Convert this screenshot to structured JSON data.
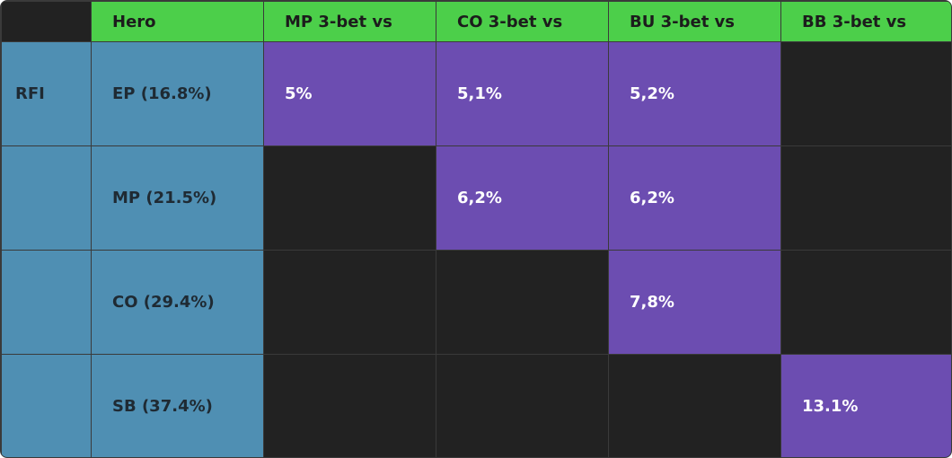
{
  "colors": {
    "header_bg": "#4ccf4a",
    "label_bg": "#4f8fb3",
    "value_bg": "#6c4db1",
    "empty_bg": "#222222"
  },
  "header": {
    "hero": "Hero",
    "mp": "MP 3-bet vs",
    "co": "CO 3-bet vs",
    "bu": "BU 3-bet vs",
    "bb": "BB 3-bet vs"
  },
  "rows": [
    {
      "group": "RFI",
      "hero": "EP (16.8%)",
      "mp": "5%",
      "co": "5,1%",
      "bu": "5,2%",
      "bb": ""
    },
    {
      "group": "",
      "hero": "MP (21.5%)",
      "mp": "",
      "co": "6,2%",
      "bu": "6,2%",
      "bb": ""
    },
    {
      "group": "",
      "hero": "CO (29.4%)",
      "mp": "",
      "co": "",
      "bu": "7,8%",
      "bb": ""
    },
    {
      "group": "",
      "hero": "SB (37.4%)",
      "mp": "",
      "co": "",
      "bu": "",
      "bb": "13.1%"
    }
  ]
}
